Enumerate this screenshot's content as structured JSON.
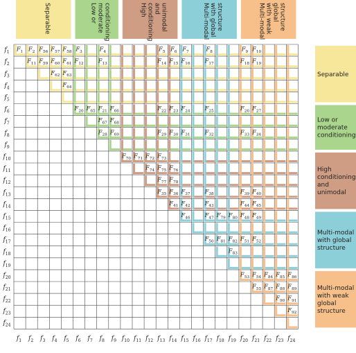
{
  "groups": [
    {
      "id": "separable",
      "label": [
        "Separable"
      ],
      "color": "#f7e79a",
      "range": [
        1,
        5
      ]
    },
    {
      "id": "low",
      "label": [
        "Low or",
        "moderate",
        "conditioning"
      ],
      "color": "#a9d68c",
      "range": [
        6,
        9
      ]
    },
    {
      "id": "high",
      "label": [
        "High",
        "conditioning",
        "and",
        "unimodal"
      ],
      "color": "#cf9d83",
      "range": [
        10,
        14
      ]
    },
    {
      "id": "global",
      "label": [
        "Multi-modal",
        "with global",
        "structure"
      ],
      "color": "#8ccfd9",
      "range": [
        15,
        19
      ]
    },
    {
      "id": "weak",
      "label": [
        "Multi-modal",
        "with weak",
        "global",
        "structure"
      ],
      "color": "#f7c08a",
      "range": [
        20,
        24
      ]
    }
  ],
  "row_labels": [
    "f1",
    "f2",
    "f3",
    "f4",
    "f5",
    "f6",
    "f7",
    "f8",
    "f9",
    "f10",
    "f11",
    "f12",
    "f13",
    "f14",
    "f15",
    "f16",
    "f17",
    "f18",
    "f19",
    "f20",
    "f21",
    "f22",
    "f23",
    "f24"
  ],
  "col_labels": [
    "f1",
    "f2",
    "f3",
    "f4",
    "f5",
    "f6",
    "f7",
    "f8",
    "f9",
    "f10",
    "f11",
    "f12",
    "f13",
    "f14",
    "f15",
    "f16",
    "f17",
    "f18",
    "f19",
    "f20",
    "f21",
    "f22",
    "f23",
    "f24"
  ],
  "cells": [
    {
      "r": 1,
      "c": 1,
      "label": "F1"
    },
    {
      "r": 1,
      "c": 2,
      "label": "F2"
    },
    {
      "r": 1,
      "c": 3,
      "label": "F56"
    },
    {
      "r": 1,
      "c": 4,
      "label": "F57"
    },
    {
      "r": 1,
      "c": 5,
      "label": "F58"
    },
    {
      "r": 1,
      "c": 6,
      "label": "F3"
    },
    {
      "r": 1,
      "c": 8,
      "label": "F4"
    },
    {
      "r": 1,
      "c": 13,
      "label": "F5"
    },
    {
      "r": 1,
      "c": 14,
      "label": "F6"
    },
    {
      "r": 1,
      "c": 15,
      "label": "F7"
    },
    {
      "r": 1,
      "c": 17,
      "label": "F8"
    },
    {
      "r": 1,
      "c": 20,
      "label": "F9"
    },
    {
      "r": 1,
      "c": 21,
      "label": "F10"
    },
    {
      "r": 2,
      "c": 2,
      "label": "F11"
    },
    {
      "r": 2,
      "c": 3,
      "label": "F59"
    },
    {
      "r": 2,
      "c": 4,
      "label": "F60"
    },
    {
      "r": 2,
      "c": 5,
      "label": "F61"
    },
    {
      "r": 2,
      "c": 6,
      "label": "F12"
    },
    {
      "r": 2,
      "c": 8,
      "label": "F13"
    },
    {
      "r": 2,
      "c": 13,
      "label": "F14"
    },
    {
      "r": 2,
      "c": 14,
      "label": "F15"
    },
    {
      "r": 2,
      "c": 15,
      "label": "F16"
    },
    {
      "r": 2,
      "c": 17,
      "label": "F17"
    },
    {
      "r": 2,
      "c": 20,
      "label": "F18"
    },
    {
      "r": 2,
      "c": 21,
      "label": "F19"
    },
    {
      "r": 3,
      "c": 4,
      "label": "F62"
    },
    {
      "r": 3,
      "c": 5,
      "label": "F63"
    },
    {
      "r": 4,
      "c": 5,
      "label": "F64"
    },
    {
      "r": 6,
      "c": 6,
      "label": "F20"
    },
    {
      "r": 6,
      "c": 7,
      "label": "F65"
    },
    {
      "r": 6,
      "c": 8,
      "label": "F21"
    },
    {
      "r": 6,
      "c": 9,
      "label": "F66"
    },
    {
      "r": 6,
      "c": 13,
      "label": "F22"
    },
    {
      "r": 6,
      "c": 14,
      "label": "F23"
    },
    {
      "r": 6,
      "c": 15,
      "label": "F24"
    },
    {
      "r": 6,
      "c": 17,
      "label": "F25"
    },
    {
      "r": 6,
      "c": 20,
      "label": "F26"
    },
    {
      "r": 6,
      "c": 21,
      "label": "F27"
    },
    {
      "r": 7,
      "c": 8,
      "label": "F67"
    },
    {
      "r": 7,
      "c": 9,
      "label": "F68"
    },
    {
      "r": 8,
      "c": 8,
      "label": "F28"
    },
    {
      "r": 8,
      "c": 9,
      "label": "F69"
    },
    {
      "r": 8,
      "c": 13,
      "label": "F29"
    },
    {
      "r": 8,
      "c": 14,
      "label": "F30"
    },
    {
      "r": 8,
      "c": 15,
      "label": "F31"
    },
    {
      "r": 8,
      "c": 17,
      "label": "F32"
    },
    {
      "r": 8,
      "c": 20,
      "label": "F33"
    },
    {
      "r": 8,
      "c": 21,
      "label": "F34"
    },
    {
      "r": 10,
      "c": 10,
      "label": "F70"
    },
    {
      "r": 10,
      "c": 11,
      "label": "F71"
    },
    {
      "r": 10,
      "c": 12,
      "label": "F72"
    },
    {
      "r": 10,
      "c": 13,
      "label": "F73"
    },
    {
      "r": 11,
      "c": 12,
      "label": "F74"
    },
    {
      "r": 11,
      "c": 13,
      "label": "F75"
    },
    {
      "r": 11,
      "c": 14,
      "label": "F76"
    },
    {
      "r": 12,
      "c": 13,
      "label": "F77"
    },
    {
      "r": 12,
      "c": 14,
      "label": "F78"
    },
    {
      "r": 13,
      "c": 13,
      "label": "F35"
    },
    {
      "r": 13,
      "c": 14,
      "label": "F36"
    },
    {
      "r": 13,
      "c": 15,
      "label": "F37"
    },
    {
      "r": 13,
      "c": 17,
      "label": "F38"
    },
    {
      "r": 13,
      "c": 20,
      "label": "F39"
    },
    {
      "r": 13,
      "c": 21,
      "label": "F40"
    },
    {
      "r": 14,
      "c": 14,
      "label": "F41"
    },
    {
      "r": 14,
      "c": 15,
      "label": "F42"
    },
    {
      "r": 14,
      "c": 17,
      "label": "F43"
    },
    {
      "r": 14,
      "c": 20,
      "label": "F44"
    },
    {
      "r": 14,
      "c": 21,
      "label": "F45"
    },
    {
      "r": 15,
      "c": 15,
      "label": "F46"
    },
    {
      "r": 15,
      "c": 17,
      "label": "F47"
    },
    {
      "r": 15,
      "c": 18,
      "label": "F79"
    },
    {
      "r": 15,
      "c": 19,
      "label": "F80"
    },
    {
      "r": 15,
      "c": 20,
      "label": "F48"
    },
    {
      "r": 15,
      "c": 21,
      "label": "F49"
    },
    {
      "r": 17,
      "c": 17,
      "label": "F50"
    },
    {
      "r": 17,
      "c": 18,
      "label": "F81"
    },
    {
      "r": 17,
      "c": 19,
      "label": "F82"
    },
    {
      "r": 17,
      "c": 20,
      "label": "F51"
    },
    {
      "r": 17,
      "c": 21,
      "label": "F52"
    },
    {
      "r": 18,
      "c": 19,
      "label": "F83"
    },
    {
      "r": 20,
      "c": 20,
      "label": "F53"
    },
    {
      "r": 20,
      "c": 21,
      "label": "F54"
    },
    {
      "r": 20,
      "c": 22,
      "label": "F84"
    },
    {
      "r": 20,
      "c": 23,
      "label": "F85"
    },
    {
      "r": 20,
      "c": 24,
      "label": "F86"
    },
    {
      "r": 21,
      "c": 21,
      "label": "F55"
    },
    {
      "r": 21,
      "c": 22,
      "label": "F87"
    },
    {
      "r": 21,
      "c": 23,
      "label": "F88"
    },
    {
      "r": 21,
      "c": 24,
      "label": "F89"
    },
    {
      "r": 22,
      "c": 23,
      "label": "F90"
    },
    {
      "r": 22,
      "c": 24,
      "label": "F91"
    },
    {
      "r": 23,
      "c": 24,
      "label": "F92"
    }
  ]
}
